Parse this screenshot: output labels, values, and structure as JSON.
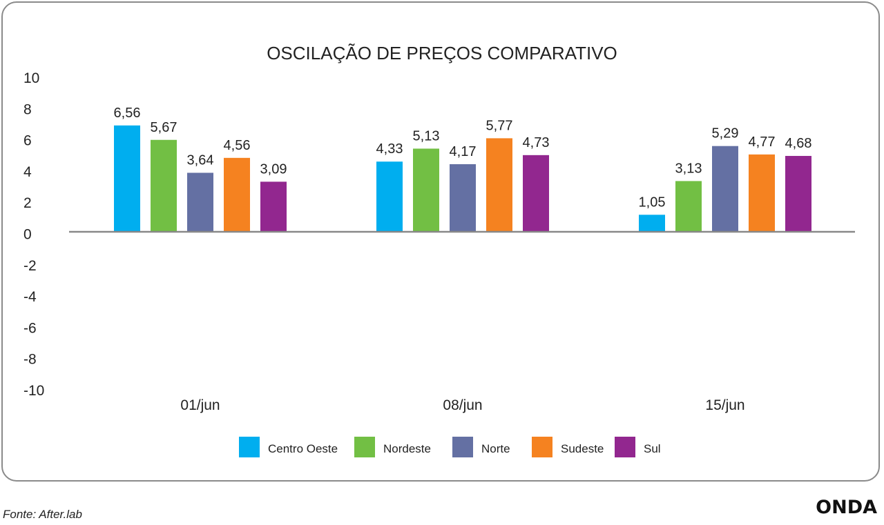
{
  "chart_data": {
    "type": "bar",
    "title": "OSCILAÇÃO DE PREÇOS COMPARATIVO",
    "categories": [
      "01/jun",
      "08/jun",
      "15/jun"
    ],
    "series": [
      {
        "name": "Centro Oeste",
        "color": "#00aeef",
        "values": [
          6.56,
          4.33,
          1.05
        ],
        "labels": [
          "6,56",
          "4,33",
          "1,05"
        ]
      },
      {
        "name": "Nordeste",
        "color": "#72bf44",
        "values": [
          5.67,
          5.13,
          3.13
        ],
        "labels": [
          "5,67",
          "5,13",
          "3,13"
        ]
      },
      {
        "name": "Norte",
        "color": "#6470a3",
        "values": [
          3.64,
          4.17,
          5.29
        ],
        "labels": [
          "3,64",
          "4,17",
          "5,29"
        ]
      },
      {
        "name": "Sudeste",
        "color": "#f58220",
        "values": [
          4.56,
          5.77,
          4.77
        ],
        "labels": [
          "4,56",
          "5,77",
          "4,77"
        ]
      },
      {
        "name": "Sul",
        "color": "#92278f",
        "values": [
          3.09,
          4.73,
          4.68
        ],
        "labels": [
          "3,09",
          "4,73",
          "4,68"
        ]
      }
    ],
    "ylim": [
      -10,
      10
    ],
    "yticks": [
      "10",
      "8",
      "6",
      "4",
      "2",
      "0",
      "-2",
      "-4",
      "-6",
      "-8",
      "-10"
    ],
    "legend": "bottom",
    "grid": false
  },
  "footer": {
    "source": "Fonte: After.lab",
    "logo": "ONDA"
  }
}
